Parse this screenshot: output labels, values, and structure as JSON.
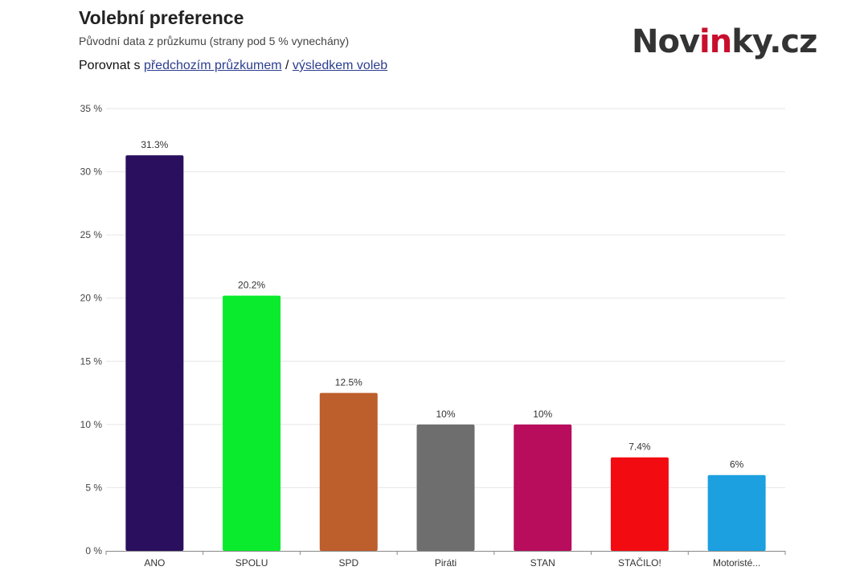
{
  "header": {
    "title": "Volební preference",
    "subtitle": "Původní data z průzkumu (strany pod 5 % vynechány)",
    "compare_prefix": "Porovnat s ",
    "compare_link1": "předchozím průzkumem",
    "compare_separator": " / ",
    "compare_link2": "výsledkem voleb"
  },
  "logo": {
    "part1": "Nov",
    "part2": "in",
    "part3": "ky.cz",
    "accent_color": "#c8102e"
  },
  "chart_data": {
    "type": "bar",
    "categories": [
      "ANO",
      "SPOLU",
      "SPD",
      "Piráti",
      "STAN",
      "STAČILO!",
      "Motoristé..."
    ],
    "values": [
      31.3,
      20.2,
      12.5,
      10,
      10,
      7.4,
      6
    ],
    "value_labels": [
      "31.3%",
      "20.2%",
      "12.5%",
      "10%",
      "10%",
      "7.4%",
      "6%"
    ],
    "colors": [
      "#2a0f5e",
      "#0aeb2e",
      "#bd5e2d",
      "#6e6e6e",
      "#b80d5c",
      "#f20c12",
      "#1ca0e0"
    ],
    "ylim": [
      0,
      35
    ],
    "yticks": [
      0,
      5,
      10,
      15,
      20,
      25,
      30,
      35
    ],
    "ytick_labels": [
      "0 %",
      "5 %",
      "10 %",
      "15 %",
      "20 %",
      "25 %",
      "30 %",
      "35 %"
    ],
    "grid": true,
    "xlabel": "",
    "ylabel": ""
  }
}
